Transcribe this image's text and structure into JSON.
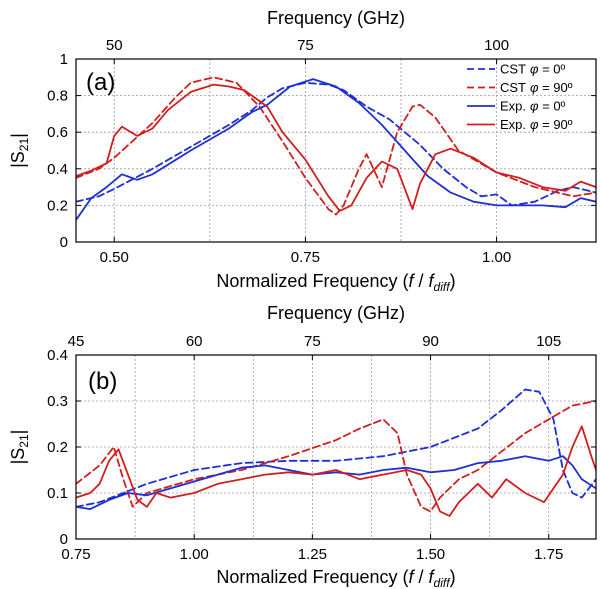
{
  "figure": {
    "colors": {
      "cst": "#1f2fd1",
      "exp": "#d11f1f",
      "grid": "#9a9a9a",
      "axis": "#000000"
    },
    "legend": [
      {
        "label_prefix": "CST",
        "label_var": "φ",
        "label_value": " = 0º",
        "color": "#1f2fd1",
        "dashed": true
      },
      {
        "label_prefix": "CST",
        "label_var": "φ",
        "label_value": " = 90º",
        "color": "#d11f1f",
        "dashed": true
      },
      {
        "label_prefix": "Exp.",
        "label_var": "φ",
        "label_value": " = 0º",
        "color": "#1f2fd1",
        "dashed": false
      },
      {
        "label_prefix": "Exp.",
        "label_var": "φ",
        "label_value": " = 90º",
        "color": "#d11f1f",
        "dashed": false
      }
    ]
  },
  "chart_data": [
    {
      "type": "line",
      "panel_label": "(a)",
      "top_xlabel": "Frequency (GHz)",
      "xlabel_prefix": "Normalized Frequency (",
      "xlabel_f": "f",
      "xlabel_slash": " / ",
      "xlabel_fsub": "f",
      "xlabel_sub": "diff",
      "xlabel_suffix": ")",
      "ylabel_main": "|S",
      "ylabel_sub": "21",
      "ylabel_end": "|",
      "xlim": [
        0.45,
        1.13
      ],
      "ylim": [
        0,
        1
      ],
      "x_ticks": [
        0.5,
        0.75,
        1.0
      ],
      "x_tick_labels": [
        "0.50",
        "0.75",
        "1.00"
      ],
      "x_minor_grid": [
        0.625,
        0.875
      ],
      "y_ticks": [
        0,
        0.2,
        0.4,
        0.6,
        0.8,
        1.0
      ],
      "y_tick_labels": [
        "0",
        "0.2",
        "0.4",
        "0.6",
        "0.8",
        "1"
      ],
      "top_ticks": [
        0.5,
        0.75,
        1.0
      ],
      "top_tick_labels": [
        "50",
        "75",
        "100"
      ],
      "grid": true,
      "legend_position": "top-right",
      "series": [
        {
          "name": "CST φ = 0º",
          "color": "#1f2fd1",
          "dashed": true,
          "x": [
            0.45,
            0.48,
            0.5,
            0.55,
            0.6,
            0.65,
            0.68,
            0.7,
            0.72,
            0.75,
            0.78,
            0.8,
            0.83,
            0.86,
            0.9,
            0.93,
            0.96,
            0.98,
            1.0,
            1.02,
            1.05,
            1.08,
            1.1,
            1.13
          ],
          "y": [
            0.22,
            0.25,
            0.29,
            0.4,
            0.52,
            0.64,
            0.72,
            0.79,
            0.84,
            0.87,
            0.86,
            0.83,
            0.74,
            0.67,
            0.53,
            0.4,
            0.3,
            0.25,
            0.26,
            0.2,
            0.22,
            0.28,
            0.3,
            0.27
          ]
        },
        {
          "name": "CST φ = 90º",
          "color": "#d11f1f",
          "dashed": true,
          "x": [
            0.45,
            0.48,
            0.5,
            0.55,
            0.58,
            0.6,
            0.63,
            0.66,
            0.69,
            0.72,
            0.75,
            0.78,
            0.79,
            0.8,
            0.82,
            0.83,
            0.85,
            0.87,
            0.89,
            0.9,
            0.92,
            0.95,
            1.0,
            1.05,
            1.1,
            1.13
          ],
          "y": [
            0.35,
            0.4,
            0.46,
            0.65,
            0.79,
            0.87,
            0.9,
            0.87,
            0.74,
            0.55,
            0.35,
            0.18,
            0.15,
            0.2,
            0.4,
            0.48,
            0.3,
            0.6,
            0.74,
            0.75,
            0.68,
            0.5,
            0.38,
            0.3,
            0.25,
            0.27
          ]
        },
        {
          "name": "Exp. φ = 0º",
          "color": "#1f2fd1",
          "dashed": false,
          "x": [
            0.45,
            0.47,
            0.49,
            0.51,
            0.53,
            0.55,
            0.6,
            0.65,
            0.68,
            0.7,
            0.73,
            0.76,
            0.79,
            0.82,
            0.85,
            0.88,
            0.91,
            0.94,
            0.97,
            1.0,
            1.03,
            1.06,
            1.09,
            1.11,
            1.13
          ],
          "y": [
            0.12,
            0.24,
            0.3,
            0.37,
            0.34,
            0.37,
            0.5,
            0.62,
            0.71,
            0.75,
            0.85,
            0.89,
            0.85,
            0.76,
            0.64,
            0.5,
            0.36,
            0.27,
            0.22,
            0.2,
            0.2,
            0.2,
            0.19,
            0.24,
            0.22
          ]
        },
        {
          "name": "Exp. φ = 90º",
          "color": "#d11f1f",
          "dashed": false,
          "x": [
            0.45,
            0.47,
            0.49,
            0.5,
            0.51,
            0.53,
            0.55,
            0.57,
            0.6,
            0.63,
            0.65,
            0.67,
            0.7,
            0.72,
            0.75,
            0.78,
            0.795,
            0.81,
            0.83,
            0.85,
            0.87,
            0.89,
            0.9,
            0.92,
            0.94,
            0.97,
            1.0,
            1.03,
            1.06,
            1.09,
            1.11,
            1.13
          ],
          "y": [
            0.36,
            0.39,
            0.43,
            0.58,
            0.63,
            0.58,
            0.62,
            0.72,
            0.82,
            0.86,
            0.85,
            0.83,
            0.74,
            0.6,
            0.45,
            0.25,
            0.17,
            0.2,
            0.35,
            0.44,
            0.4,
            0.18,
            0.32,
            0.48,
            0.51,
            0.46,
            0.38,
            0.35,
            0.3,
            0.28,
            0.33,
            0.3
          ]
        }
      ]
    },
    {
      "type": "line",
      "panel_label": "(b)",
      "top_xlabel": "Frequency (GHz)",
      "xlabel_prefix": "Normalized Frequency (",
      "xlabel_f": "f",
      "xlabel_slash": " / ",
      "xlabel_fsub": "f",
      "xlabel_sub": "diff",
      "xlabel_suffix": ")",
      "ylabel_main": "|S",
      "ylabel_sub": "21",
      "ylabel_end": "|",
      "xlim": [
        0.75,
        1.85
      ],
      "ylim": [
        0,
        0.4
      ],
      "x_ticks": [
        0.75,
        1.0,
        1.25,
        1.5,
        1.75
      ],
      "x_tick_labels": [
        "0.75",
        "1.00",
        "1.25",
        "1.50",
        "1.75"
      ],
      "x_minor_grid": [
        0.875,
        1.125,
        1.375,
        1.625
      ],
      "y_ticks": [
        0,
        0.1,
        0.2,
        0.3,
        0.4
      ],
      "y_tick_labels": [
        "0",
        "0.1",
        "0.2",
        "0.3",
        "0.4"
      ],
      "top_ticks": [
        0.75,
        1.0,
        1.25,
        1.5,
        1.75
      ],
      "top_tick_labels": [
        "45",
        "60",
        "75",
        "90",
        "105"
      ],
      "grid": true,
      "legend_position": "none",
      "series": [
        {
          "name": "CST φ = 0º",
          "color": "#1f2fd1",
          "dashed": true,
          "x": [
            0.75,
            0.8,
            0.85,
            0.9,
            1.0,
            1.1,
            1.2,
            1.3,
            1.4,
            1.5,
            1.6,
            1.65,
            1.7,
            1.73,
            1.76,
            1.78,
            1.8,
            1.82,
            1.85
          ],
          "y": [
            0.07,
            0.08,
            0.1,
            0.12,
            0.15,
            0.165,
            0.17,
            0.17,
            0.18,
            0.2,
            0.24,
            0.28,
            0.325,
            0.32,
            0.26,
            0.15,
            0.1,
            0.09,
            0.13
          ]
        },
        {
          "name": "CST φ = 90º",
          "color": "#d11f1f",
          "dashed": true,
          "x": [
            0.75,
            0.8,
            0.83,
            0.85,
            0.87,
            0.9,
            1.0,
            1.1,
            1.2,
            1.3,
            1.35,
            1.4,
            1.43,
            1.45,
            1.48,
            1.5,
            1.52,
            1.56,
            1.6,
            1.65,
            1.7,
            1.75,
            1.8,
            1.85
          ],
          "y": [
            0.12,
            0.16,
            0.2,
            0.13,
            0.07,
            0.1,
            0.13,
            0.15,
            0.18,
            0.215,
            0.24,
            0.26,
            0.23,
            0.14,
            0.07,
            0.06,
            0.09,
            0.13,
            0.15,
            0.19,
            0.23,
            0.26,
            0.29,
            0.3
          ]
        },
        {
          "name": "Exp. φ = 0º",
          "color": "#1f2fd1",
          "dashed": false,
          "x": [
            0.75,
            0.78,
            0.82,
            0.86,
            0.9,
            0.95,
            1.0,
            1.05,
            1.1,
            1.15,
            1.2,
            1.25,
            1.3,
            1.35,
            1.4,
            1.45,
            1.5,
            1.55,
            1.6,
            1.65,
            1.7,
            1.75,
            1.78,
            1.8,
            1.82,
            1.85
          ],
          "y": [
            0.07,
            0.065,
            0.085,
            0.1,
            0.095,
            0.11,
            0.125,
            0.14,
            0.155,
            0.16,
            0.15,
            0.14,
            0.145,
            0.14,
            0.15,
            0.155,
            0.145,
            0.15,
            0.165,
            0.17,
            0.18,
            0.17,
            0.18,
            0.16,
            0.13,
            0.11
          ]
        },
        {
          "name": "Exp. φ = 90º",
          "color": "#d11f1f",
          "dashed": false,
          "x": [
            0.75,
            0.78,
            0.8,
            0.82,
            0.84,
            0.86,
            0.88,
            0.9,
            0.92,
            0.95,
            1.0,
            1.05,
            1.1,
            1.15,
            1.2,
            1.25,
            1.3,
            1.35,
            1.4,
            1.45,
            1.48,
            1.5,
            1.52,
            1.54,
            1.56,
            1.58,
            1.6,
            1.63,
            1.66,
            1.7,
            1.74,
            1.78,
            1.8,
            1.82,
            1.84,
            1.85
          ],
          "y": [
            0.09,
            0.1,
            0.12,
            0.17,
            0.195,
            0.14,
            0.085,
            0.07,
            0.1,
            0.09,
            0.1,
            0.12,
            0.13,
            0.14,
            0.145,
            0.14,
            0.15,
            0.13,
            0.14,
            0.15,
            0.14,
            0.11,
            0.06,
            0.05,
            0.08,
            0.1,
            0.12,
            0.09,
            0.13,
            0.1,
            0.08,
            0.14,
            0.2,
            0.245,
            0.18,
            0.15
          ]
        }
      ]
    }
  ]
}
